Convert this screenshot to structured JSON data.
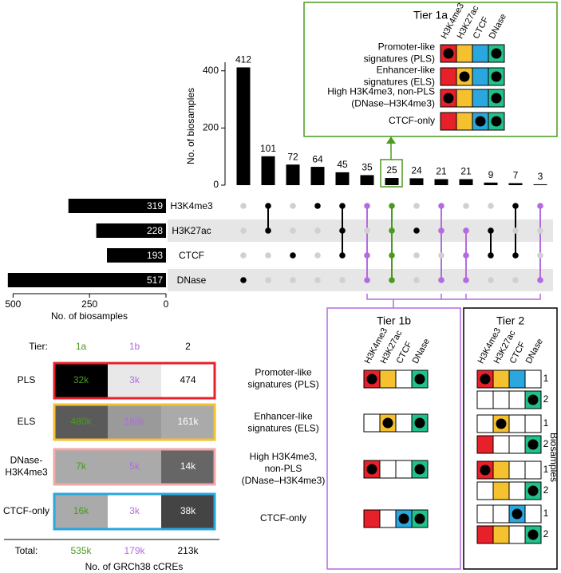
{
  "chart_data": [
    {
      "type": "upset",
      "y_label": "No. of biosamples",
      "values": [
        412,
        101,
        72,
        64,
        45,
        35,
        25,
        24,
        21,
        21,
        9,
        7,
        3
      ],
      "ylim": [
        0,
        430
      ],
      "yticks": [
        0,
        200,
        400
      ],
      "color": "#000000",
      "membership": [
        [
          0,
          0,
          0,
          1
        ],
        [
          1,
          1,
          0,
          0
        ],
        [
          0,
          0,
          1,
          0
        ],
        [
          1,
          0,
          0,
          0
        ],
        [
          1,
          1,
          1,
          0
        ],
        [
          1,
          0,
          1,
          1
        ],
        [
          1,
          1,
          1,
          1
        ],
        [
          0,
          1,
          0,
          0
        ],
        [
          1,
          1,
          0,
          1
        ],
        [
          0,
          1,
          1,
          1
        ],
        [
          0,
          1,
          1,
          0
        ],
        [
          1,
          0,
          1,
          0
        ],
        [
          1,
          0,
          0,
          1
        ]
      ],
      "column_colors": [
        "#000000",
        "#000000",
        "#000000",
        "#000000",
        "#000000",
        "#b36be0",
        "#4a9a1f",
        "#000000",
        "#b36be0",
        "#b36be0",
        "#000000",
        "#000000",
        "#b36be0"
      ],
      "empty_dot_color": "#d0d0d0",
      "band_color": "#e6e6e6"
    },
    {
      "type": "hbar",
      "categories": [
        "H3K4me3",
        "H3K27ac",
        "CTCF",
        "DNase"
      ],
      "values": [
        319,
        228,
        193,
        517
      ],
      "xlim": [
        0,
        540
      ],
      "xticks": [
        500,
        250,
        0
      ],
      "x_label": "No. of biosamples",
      "color": "#000000",
      "reversed": true
    },
    {
      "type": "heatmap",
      "tier_label": "Tier:",
      "columns": [
        "1a",
        "1b",
        "2"
      ],
      "column_colors": [
        "#4a9a1f",
        "#b36be0",
        "#000000"
      ],
      "rows": [
        [
          "PLS"
        ],
        [
          "ELS"
        ],
        [
          "DNase-",
          "H3K4me3"
        ],
        [
          "CTCF-only"
        ]
      ],
      "row_colors": [
        "#e8202a",
        "#f5c12e",
        "#f0a8a8",
        "#2aa7de"
      ],
      "values": [
        [
          32000,
          3000,
          474
        ],
        [
          480000,
          168000,
          161000
        ],
        [
          7000,
          5000,
          14000
        ],
        [
          16000,
          3000,
          38000
        ]
      ],
      "value_labels": [
        [
          "32k",
          "3k",
          "474"
        ],
        [
          "480k",
          "168k",
          "161k"
        ],
        [
          "7k",
          "5k",
          "14k"
        ],
        [
          "16k",
          "3k",
          "38k"
        ]
      ],
      "cell_colors": [
        [
          "#000000",
          "#e8e8e8",
          "#ffffff"
        ],
        [
          "#5a5a5a",
          "#9a9a9a",
          "#aaaaaa"
        ],
        [
          "#aaaaaa",
          "#aaaaaa",
          "#666666"
        ],
        [
          "#aaaaaa",
          "#ffffff",
          "#444444"
        ]
      ],
      "label_colors": [
        [
          "#4a9a1f",
          "#b36be0",
          "#000000"
        ],
        [
          "#4a9a1f",
          "#b36be0",
          "#ffffff"
        ],
        [
          "#4a9a1f",
          "#b36be0",
          "#ffffff"
        ],
        [
          "#4a9a1f",
          "#b36be0",
          "#ffffff"
        ]
      ],
      "total_label": "Total:",
      "totals": [
        535000,
        179000,
        213000
      ],
      "total_labels": [
        "535k",
        "179k",
        "213k"
      ],
      "x_label": "No. of GRCh38 cCREs"
    }
  ],
  "marks": [
    "H3K4me3",
    "H3K27ac",
    "CTCF",
    "DNase"
  ],
  "mark_colors": [
    "#e8202a",
    "#f5c12e",
    "#2aa7de",
    "#22c08a"
  ],
  "panels": [
    {
      "title": "Tier 1a",
      "color": "#4a9a1f",
      "rows": [
        {
          "label": [
            "Promoter-like",
            "signatures (PLS)"
          ],
          "patterns": [
            {
              "fill": [
                1,
                1,
                1,
                1
              ],
              "dot": [
                1,
                0,
                0,
                1
              ]
            }
          ]
        },
        {
          "label": [
            "Enhancer-like",
            "signatures (ELS)"
          ],
          "patterns": [
            {
              "fill": [
                1,
                1,
                1,
                1
              ],
              "dot": [
                0,
                1,
                0,
                1
              ]
            }
          ]
        },
        {
          "label": [
            "High H3K4me3, non-PLS",
            "(DNase–H3K4me3)"
          ],
          "patterns": [
            {
              "fill": [
                1,
                1,
                1,
                1
              ],
              "dot": [
                1,
                0,
                0,
                1
              ]
            }
          ]
        },
        {
          "label": [
            "CTCF-only"
          ],
          "patterns": [
            {
              "fill": [
                1,
                1,
                1,
                1
              ],
              "dot": [
                0,
                0,
                1,
                1
              ]
            }
          ]
        }
      ]
    },
    {
      "title": "Tier 1b",
      "color": "#b36be0",
      "rows": [
        {
          "label": [
            "Promoter-like",
            "signatures (PLS)"
          ],
          "patterns": [
            {
              "fill": [
                1,
                1,
                0,
                1
              ],
              "dot": [
                1,
                0,
                0,
                1
              ]
            }
          ]
        },
        {
          "label": [
            "Enhancer-like",
            "signatures (ELS)"
          ],
          "patterns": [
            {
              "fill": [
                0,
                1,
                0,
                1
              ],
              "dot": [
                0,
                1,
                0,
                1
              ]
            }
          ]
        },
        {
          "label": [
            "High H3K4me3,",
            "non-PLS",
            "(DNase–H3K4me3)"
          ],
          "patterns": [
            {
              "fill": [
                1,
                0,
                0,
                1
              ],
              "dot": [
                1,
                0,
                0,
                1
              ]
            }
          ]
        },
        {
          "label": [
            "CTCF-only"
          ],
          "patterns": [
            {
              "fill": [
                1,
                0,
                1,
                1
              ],
              "dot": [
                0,
                0,
                1,
                1
              ]
            }
          ]
        }
      ]
    },
    {
      "title": "Tier 2",
      "color": "#000000",
      "pattern_labels": [
        "1",
        "2"
      ],
      "side_label": "Biosamples",
      "rows": [
        {
          "patterns": [
            {
              "fill": [
                1,
                1,
                1,
                0
              ],
              "dot": [
                1,
                0,
                0,
                0
              ]
            },
            {
              "fill": [
                0,
                0,
                0,
                1
              ],
              "dot": [
                0,
                0,
                0,
                1
              ]
            }
          ]
        },
        {
          "patterns": [
            {
              "fill": [
                0,
                1,
                0,
                0
              ],
              "dot": [
                0,
                1,
                0,
                0
              ]
            },
            {
              "fill": [
                1,
                0,
                0,
                1
              ],
              "dot": [
                0,
                0,
                0,
                1
              ]
            }
          ]
        },
        {
          "patterns": [
            {
              "fill": [
                1,
                1,
                0,
                0
              ],
              "dot": [
                1,
                0,
                0,
                0
              ]
            },
            {
              "fill": [
                0,
                1,
                0,
                1
              ],
              "dot": [
                0,
                0,
                0,
                1
              ]
            }
          ]
        },
        {
          "patterns": [
            {
              "fill": [
                0,
                0,
                1,
                0
              ],
              "dot": [
                0,
                0,
                1,
                0
              ]
            },
            {
              "fill": [
                1,
                1,
                0,
                1
              ],
              "dot": [
                0,
                0,
                0,
                1
              ]
            }
          ]
        }
      ]
    }
  ]
}
